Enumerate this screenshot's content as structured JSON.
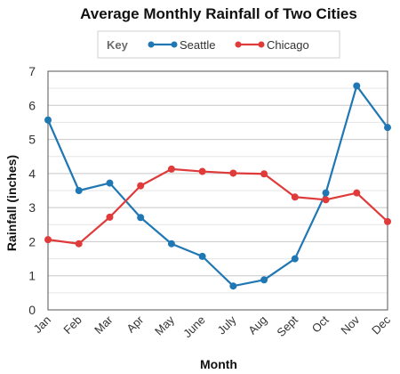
{
  "chart_data": {
    "type": "line",
    "title": "Average Monthly Rainfall of Two Cities",
    "xlabel": "Month",
    "ylabel": "Rainfall (inches)",
    "categories": [
      "Jan",
      "Feb",
      "Mar",
      "Apr",
      "May",
      "June",
      "July",
      "Aug",
      "Sept",
      "Oct",
      "Nov",
      "Dec"
    ],
    "ylim": [
      0,
      7
    ],
    "yticks": [
      "0",
      "1",
      "2",
      "3",
      "4",
      "5",
      "6",
      "7"
    ],
    "grid": true,
    "legend": {
      "title": "Key",
      "placement": "top-center"
    },
    "series": [
      {
        "name": "Seattle",
        "color": "#1f77b4",
        "values": [
          5.57,
          3.5,
          3.72,
          2.71,
          1.94,
          1.57,
          0.7,
          0.88,
          1.5,
          3.43,
          6.57,
          5.35
        ]
      },
      {
        "name": "Chicago",
        "color": "#e03b3b",
        "values": [
          2.06,
          1.94,
          2.72,
          3.64,
          4.13,
          4.06,
          4.01,
          3.99,
          3.31,
          3.23,
          3.43,
          2.59
        ]
      }
    ]
  }
}
